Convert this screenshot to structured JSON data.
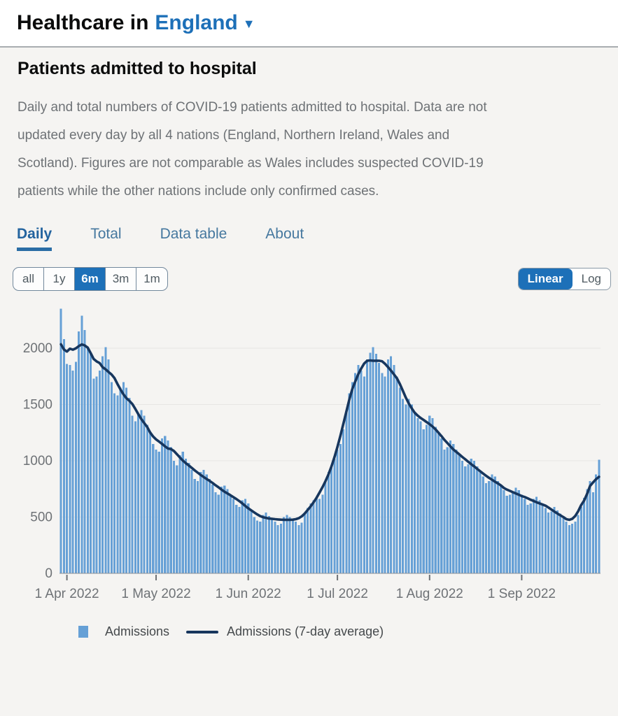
{
  "header": {
    "title_prefix": "Healthcare in",
    "region": "England",
    "icons": {
      "caret_down": "▼"
    }
  },
  "section": {
    "title": "Patients admitted to hospital",
    "description": "Daily and total numbers of COVID-19 patients admitted to hospital. Data are not updated every day by all 4 nations (England, Northern Ireland, Wales and Scotland). Figures are not comparable as Wales includes suspected COVID-19 patients while the other nations include only confirmed cases."
  },
  "tabs": [
    {
      "label": "Daily",
      "active": true
    },
    {
      "label": "Total",
      "active": false
    },
    {
      "label": "Data table",
      "active": false
    },
    {
      "label": "About",
      "active": false
    }
  ],
  "range_buttons": [
    {
      "label": "all",
      "active": false
    },
    {
      "label": "1y",
      "active": false
    },
    {
      "label": "6m",
      "active": true
    },
    {
      "label": "3m",
      "active": false
    },
    {
      "label": "1m",
      "active": false
    }
  ],
  "scale_toggle": [
    {
      "label": "Linear",
      "active": true
    },
    {
      "label": "Log",
      "active": false
    }
  ],
  "colors": {
    "accent_blue": "#1d70b8",
    "bar_fill": "#66a0d6",
    "line_navy": "#17365d",
    "axis_text": "#6e7276",
    "gridline": "#e7e6e4"
  },
  "chart_data": {
    "type": "bar",
    "title": "Patients admitted to hospital (Daily, England, 6m, Linear)",
    "xlabel": "",
    "ylabel": "",
    "ylim": [
      0,
      2400
    ],
    "yticks": [
      0,
      500,
      1000,
      1500,
      2000
    ],
    "grid": "horizontal",
    "legend_position": "bottom",
    "start_date": "2022-03-30",
    "end_date": "2022-09-27",
    "x_ticks": [
      {
        "index": 2,
        "label": "1 Apr 2022"
      },
      {
        "index": 32,
        "label": "1 May 2022"
      },
      {
        "index": 63,
        "label": "1 Jun 2022"
      },
      {
        "index": 93,
        "label": "1 Jul 2022"
      },
      {
        "index": 124,
        "label": "1 Aug 2022"
      },
      {
        "index": 155,
        "label": "1 Sep 2022"
      }
    ],
    "series": [
      {
        "name": "Admissions",
        "type": "bar",
        "color": "#66a0d6",
        "values": [
          2350,
          2080,
          1860,
          1850,
          1800,
          1880,
          2150,
          2290,
          2160,
          2000,
          1960,
          1730,
          1750,
          1800,
          1930,
          2010,
          1900,
          1700,
          1600,
          1580,
          1650,
          1700,
          1650,
          1560,
          1400,
          1350,
          1420,
          1450,
          1400,
          1320,
          1260,
          1150,
          1100,
          1080,
          1200,
          1220,
          1180,
          1120,
          1000,
          960,
          1050,
          1080,
          1020,
          980,
          920,
          840,
          820,
          900,
          920,
          880,
          840,
          790,
          720,
          700,
          770,
          780,
          750,
          700,
          660,
          610,
          590,
          650,
          660,
          620,
          560,
          500,
          470,
          460,
          520,
          540,
          510,
          490,
          460,
          430,
          440,
          500,
          520,
          500,
          480,
          460,
          430,
          450,
          530,
          580,
          620,
          650,
          680,
          660,
          700,
          820,
          900,
          960,
          1020,
          1100,
          1150,
          1280,
          1450,
          1600,
          1700,
          1780,
          1850,
          1800,
          1750,
          1900,
          1960,
          2010,
          1950,
          1870,
          1780,
          1750,
          1900,
          1930,
          1850,
          1750,
          1650,
          1550,
          1500,
          1550,
          1500,
          1430,
          1380,
          1350,
          1280,
          1320,
          1400,
          1380,
          1300,
          1250,
          1200,
          1100,
          1120,
          1180,
          1150,
          1100,
          1050,
          1000,
          950,
          970,
          1020,
          1000,
          950,
          900,
          860,
          800,
          820,
          880,
          860,
          820,
          780,
          740,
          690,
          700,
          720,
          760,
          740,
          700,
          660,
          610,
          620,
          660,
          680,
          650,
          620,
          580,
          540,
          550,
          590,
          560,
          530,
          490,
          460,
          430,
          440,
          460,
          520,
          590,
          670,
          750,
          820,
          720,
          880,
          1010
        ]
      },
      {
        "name": "Admissions (7-day average)",
        "type": "line",
        "color": "#17365d",
        "derived": "centered 7-day moving average of Admissions values"
      }
    ],
    "legend": [
      "Admissions",
      "Admissions (7-day average)"
    ]
  }
}
